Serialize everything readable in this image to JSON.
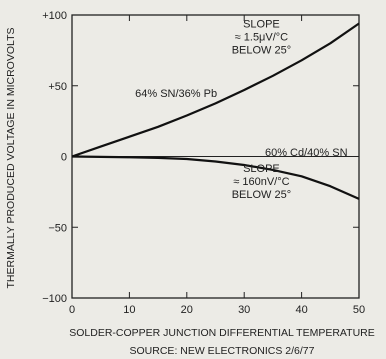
{
  "chart_data": {
    "type": "line",
    "title": "",
    "xlabel": "SOLDER-COPPER JUNCTION DIFFERENTIAL TEMPERATURE",
    "ylabel": "THERMALLY PRODUCED VOLTAGE IN MICROVOLTS",
    "source": "SOURCE: NEW ELECTRONICS 2/6/77",
    "xlim": [
      0,
      50
    ],
    "ylim": [
      -100,
      100
    ],
    "x_ticks": [
      0,
      10,
      20,
      30,
      40,
      50
    ],
    "y_ticks": [
      -100,
      -50,
      0,
      50,
      100
    ],
    "x_tick_labels": [
      "0",
      "10",
      "20",
      "30",
      "40",
      "50"
    ],
    "y_tick_labels": [
      "−100",
      "−50",
      "0",
      "+50",
      "+100"
    ],
    "grid": false,
    "series": [
      {
        "name": "64% SN/36% Pb",
        "x": [
          0,
          5,
          10,
          15,
          20,
          25,
          30,
          35,
          40,
          45,
          50
        ],
        "y": [
          0,
          7,
          14,
          21,
          29,
          37.5,
          47,
          57,
          68,
          80,
          94
        ]
      },
      {
        "name": "60% Cd/40% SN",
        "x": [
          0,
          5,
          10,
          15,
          20,
          25,
          30,
          35,
          40,
          45,
          50
        ],
        "y": [
          0,
          -0.3,
          -0.6,
          -1,
          -1.8,
          -3.5,
          -6,
          -9.5,
          -14,
          -21,
          -30
        ]
      }
    ],
    "annotations": [
      {
        "lines": [
          "SLOPE",
          "≈ 1.5μV/°C",
          "BELOW 25°"
        ],
        "x": 33,
        "y": 91
      },
      {
        "lines": [
          "SLOPE",
          "≈ 160nV/°C",
          "BELOW 25°"
        ],
        "x": 33,
        "y": -11
      }
    ]
  }
}
